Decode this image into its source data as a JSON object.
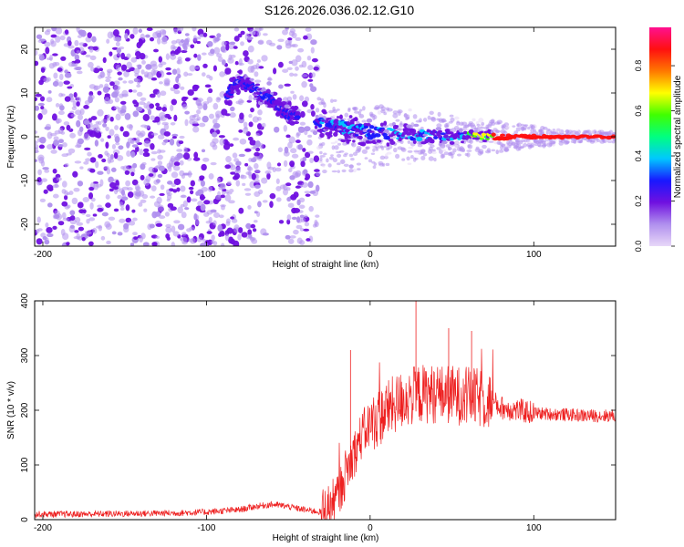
{
  "figure_title": "S126.2026.036.02.12.G10",
  "chart_data": [
    {
      "type": "heatmap",
      "title": "",
      "xlabel": "Height of straight line (km)",
      "ylabel": "Frequency (Hz)",
      "xlim": [
        -205,
        150
      ],
      "ylim": [
        -25,
        25
      ],
      "xticks": [
        -200,
        -100,
        0,
        100
      ],
      "yticks": [
        -20,
        -10,
        0,
        10,
        20
      ],
      "colorbar": {
        "label": "Normalized spectral amplitude",
        "range": [
          0.0,
          0.97
        ],
        "ticks": [
          "0.0",
          "0.2",
          "0.4",
          "0.6",
          "0.8"
        ],
        "colormap": [
          "#e8d8f8",
          "#b090ee",
          "#7010e0",
          "#1818ff",
          "#00c8ff",
          "#00ff80",
          "#40ff00",
          "#ffff00",
          "#ff7800",
          "#ff1010",
          "#ff1090"
        ]
      },
      "features": [
        {
          "name": "",
          "x": [
            -88,
            -80,
            -72,
            -64,
            -56,
            -50,
            -44
          ],
          "y": [
            9,
            13,
            11,
            9,
            7,
            5,
            5
          ]
        },
        {
          "name": "",
          "x": [
            -33,
            -20,
            -10,
            0,
            20,
            40,
            60,
            80,
            100,
            120,
            150
          ],
          "y": [
            3.5,
            2.5,
            1.5,
            1.0,
            0.5,
            0.3,
            0.2,
            0.0,
            0.0,
            0.0,
            0.0
          ]
        }
      ]
    },
    {
      "type": "line",
      "title": "",
      "xlabel": "Height of straight line (km)",
      "ylabel": "SNR (10 * v/v)",
      "xlim": [
        -205,
        150
      ],
      "ylim": [
        0,
        400
      ],
      "xticks": [
        -200,
        -100,
        0,
        100
      ],
      "yticks": [
        0,
        100,
        200,
        300,
        400
      ],
      "line_color": "#ee2020",
      "series": [
        {
          "name": "",
          "x": [
            -205,
            -180,
            -150,
            -120,
            -100,
            -80,
            -70,
            -60,
            -50,
            -40,
            -30,
            -25,
            -20,
            -15,
            -10,
            -5,
            0,
            5,
            10,
            15,
            20,
            25,
            30,
            40,
            50,
            60,
            70,
            75,
            80,
            90,
            100,
            110,
            120,
            130,
            140,
            150
          ],
          "y": [
            10,
            10,
            11,
            12,
            14,
            18,
            24,
            28,
            24,
            18,
            14,
            22,
            40,
            85,
            120,
            155,
            175,
            185,
            200,
            210,
            220,
            225,
            230,
            230,
            228,
            225,
            220,
            215,
            205,
            200,
            195,
            193,
            192,
            190,
            190,
            190
          ]
        }
      ],
      "peaks": [
        {
          "x": 28,
          "y": 405
        },
        {
          "x": 48,
          "y": 350
        },
        {
          "x": 62,
          "y": 345
        },
        {
          "x": -12,
          "y": 310
        }
      ]
    }
  ]
}
